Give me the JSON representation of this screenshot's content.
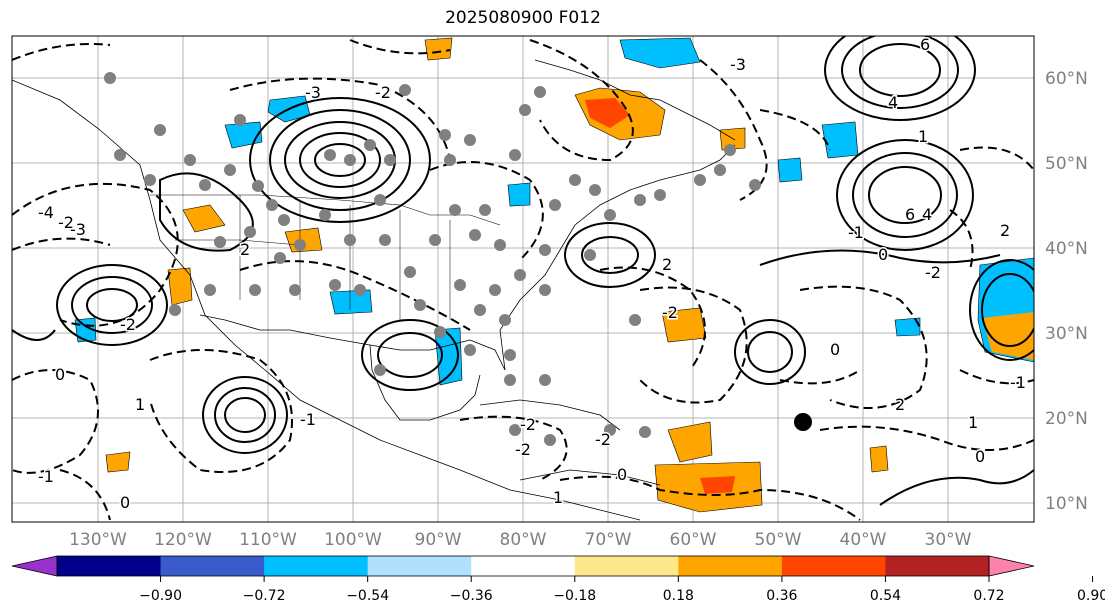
{
  "title": "2025080900 F012",
  "longitude_labels": [
    "130°W",
    "120°W",
    "110°W",
    "100°W",
    "90°W",
    "80°W",
    "70°W",
    "60°W",
    "50°W",
    "40°W",
    "30°W"
  ],
  "latitude_labels": [
    "60°N",
    "50°N",
    "40°N",
    "30°N",
    "20°N",
    "10°N"
  ],
  "colorbar": {
    "tick_labels": [
      "−0.90",
      "−0.72",
      "−0.54",
      "−0.36",
      "−0.18",
      "0.18",
      "0.36",
      "0.54",
      "0.72",
      "0.90"
    ],
    "colors": [
      "#9932cc",
      "#00008b",
      "#3a5bcc",
      "#00bfff",
      "#b0e0fe",
      "#ffffff",
      "#ffe88c",
      "#ffa500",
      "#ff4500",
      "#b22222",
      "#ff82ab"
    ]
  },
  "contour_labels": [
    "-3",
    "-2",
    "-4",
    "-3",
    "-2",
    "2",
    "-1",
    "1",
    "-2",
    "0",
    "-3",
    "6",
    "4",
    "1",
    "4",
    "6",
    "0",
    "2",
    "-1",
    "-2",
    "0",
    "-1",
    "1",
    "2",
    "0",
    "-2",
    "-2",
    "2",
    "-2",
    "1",
    "0",
    "-2",
    "0",
    "-1"
  ],
  "feature_colors": {
    "shade_blue": "#00bfff",
    "shade_orange": "#ffa500",
    "shade_red": "#ff4500",
    "marker_gray": "#808080",
    "marker_black": "#000000",
    "grid": "#b4b4b4"
  }
}
